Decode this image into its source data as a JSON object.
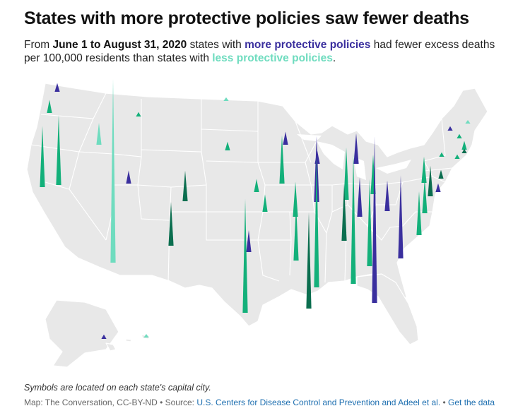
{
  "header": {
    "title": "States with more protective policies saw fewer deaths",
    "sub_prefix": "From ",
    "sub_dates": "June 1 to August 31, 2020",
    "sub_mid": " states with ",
    "sub_more": "more protective policies",
    "sub_mid2": " had fewer excess deaths per 100,000 residents than states with ",
    "sub_less": "less protective policies",
    "sub_end": "."
  },
  "colors": {
    "more_protective": "#3a2f9e",
    "less_protective": "#6fdcbf",
    "mid_green": "#13b07a",
    "dark_green": "#0b6e4f",
    "land": "#e8e8e8",
    "border": "#ffffff"
  },
  "spikes": [
    {
      "state": "WA",
      "group": "more",
      "value": 2
    },
    {
      "state": "OR",
      "group": "mid",
      "value": 3
    },
    {
      "state": "CA",
      "group": "mid",
      "value": 14
    },
    {
      "state": "NV",
      "group": "mid",
      "value": 16
    },
    {
      "state": "ID",
      "group": "less",
      "value": 5
    },
    {
      "state": "MT",
      "group": "mid",
      "value": 1
    },
    {
      "state": "WY",
      "group": "less",
      "value": 0
    },
    {
      "state": "UT",
      "group": "more",
      "value": 3
    },
    {
      "state": "AZ",
      "group": "less",
      "value": 42
    },
    {
      "state": "CO",
      "group": "dark",
      "value": 7
    },
    {
      "state": "NM",
      "group": "dark",
      "value": 10
    },
    {
      "state": "ND",
      "group": "less",
      "value": 0
    },
    {
      "state": "SD",
      "group": "mid",
      "value": 2
    },
    {
      "state": "NE",
      "group": "mid",
      "value": 3
    },
    {
      "state": "KS",
      "group": "mid",
      "value": 4
    },
    {
      "state": "OK",
      "group": "more",
      "value": 5
    },
    {
      "state": "TX",
      "group": "mid",
      "value": 26
    },
    {
      "state": "MN",
      "group": "more",
      "value": 3
    },
    {
      "state": "IA",
      "group": "mid",
      "value": 11
    },
    {
      "state": "MO",
      "group": "mid",
      "value": 8
    },
    {
      "state": "AR",
      "group": "mid",
      "value": 13
    },
    {
      "state": "LA",
      "group": "dark",
      "value": 22
    },
    {
      "state": "WI",
      "group": "more",
      "value": 3
    },
    {
      "state": "IL",
      "group": "more",
      "value": 15
    },
    {
      "state": "MI",
      "group": "more",
      "value": 7
    },
    {
      "state": "IN",
      "group": "mid",
      "value": 12
    },
    {
      "state": "OH",
      "group": "mid",
      "value": 9
    },
    {
      "state": "KY",
      "group": "more",
      "value": 9
    },
    {
      "state": "TN",
      "group": "dark",
      "value": 13
    },
    {
      "state": "MS",
      "group": "mid",
      "value": 30
    },
    {
      "state": "AL",
      "group": "mid",
      "value": 30
    },
    {
      "state": "GA",
      "group": "mid",
      "value": 20
    },
    {
      "state": "FL",
      "group": "more",
      "value": 38
    },
    {
      "state": "SC",
      "group": "more",
      "value": 19
    },
    {
      "state": "NC",
      "group": "mid",
      "value": 10
    },
    {
      "state": "VA",
      "group": "mid",
      "value": 8
    },
    {
      "state": "WV",
      "group": "more",
      "value": 7
    },
    {
      "state": "PA",
      "group": "mid",
      "value": 6
    },
    {
      "state": "MD",
      "group": "dark",
      "value": 7
    },
    {
      "state": "DE",
      "group": "more",
      "value": 2
    },
    {
      "state": "NJ",
      "group": "dark",
      "value": 2
    },
    {
      "state": "NY",
      "group": "mid",
      "value": 1
    },
    {
      "state": "VT",
      "group": "more",
      "value": 1
    },
    {
      "state": "NH",
      "group": "mid",
      "value": 1
    },
    {
      "state": "ME",
      "group": "less",
      "value": 0
    },
    {
      "state": "MA",
      "group": "mid",
      "value": 2
    },
    {
      "state": "RI",
      "group": "dark",
      "value": 1
    },
    {
      "state": "CT",
      "group": "mid",
      "value": 1
    },
    {
      "state": "HI",
      "group": "more",
      "value": 1
    },
    {
      "state": "AK",
      "group": "less",
      "value": 0
    }
  ],
  "footer": {
    "note": "Symbols are located on each state's capital city.",
    "credit_prefix": "Map: The Conversation, CC-BY-ND • Source: ",
    "source_link": "U.S. Centers for Disease Control and Prevention and Adeel et al.",
    "separator": " • ",
    "data_link": "Get the data"
  }
}
